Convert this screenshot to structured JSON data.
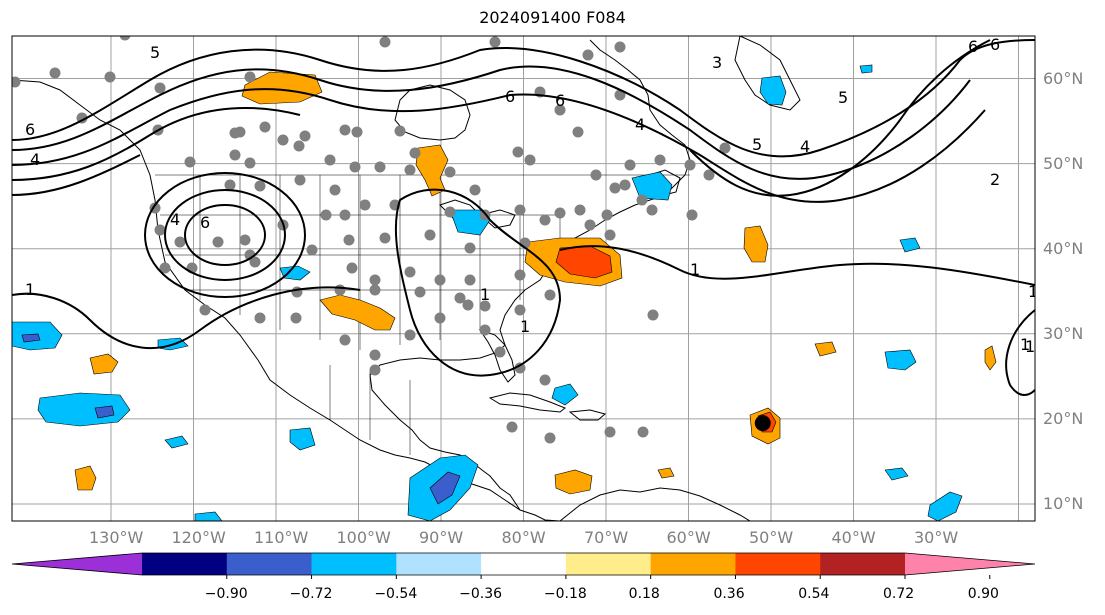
{
  "title": "2024091400 F084",
  "colors": {
    "frame": "#000000",
    "grid": "#a0a0a0",
    "ocean": "#ffffff",
    "land_outline": "#000000",
    "station_dot": "#808080",
    "storm_dot": "#000000",
    "contour": "#000000"
  },
  "map": {
    "projection": "PlateCarree",
    "lon_range_deg": [
      -142,
      -18
    ],
    "lat_range_deg": [
      8,
      65
    ],
    "gridlines": true,
    "lat_ticks": [
      "10°N",
      "20°N",
      "30°N",
      "40°N",
      "50°N",
      "60°N"
    ],
    "lon_ticks": [
      "130°W",
      "120°W",
      "110°W",
      "100°W",
      "90°W",
      "80°W",
      "70°W",
      "60°W",
      "50°W",
      "40°W",
      "30°W"
    ],
    "contour_labels": [
      "5",
      "6",
      "3",
      "6",
      "5",
      "4",
      "6",
      "6",
      "4",
      "1",
      "1",
      "1",
      "1",
      "1",
      "2",
      "1",
      "5",
      "4",
      "6",
      "4",
      "6",
      "1"
    ],
    "storm_marker": {
      "lon": -51,
      "lat": 19.5
    }
  },
  "colorbar": {
    "orientation": "horizontal",
    "extend": "both",
    "boundaries": [
      -1.08,
      -0.9,
      -0.72,
      -0.54,
      -0.36,
      -0.18,
      0.18,
      0.36,
      0.54,
      0.72,
      0.9,
      1.08
    ],
    "colors": [
      "#9b30d9",
      "#000080",
      "#3a5fcd",
      "#00bfff",
      "#b0e2ff",
      "#ffffff",
      "#ffec8b",
      "#ffa500",
      "#ff4500",
      "#b22222",
      "#ff82ab"
    ],
    "under_color": "#9b30d9",
    "over_color": "#ff82ab",
    "tick_labels": [
      "−0.90",
      "−0.72",
      "−0.54",
      "−0.36",
      "−0.18",
      "0.18",
      "0.36",
      "0.54",
      "0.72",
      "0.90"
    ]
  }
}
